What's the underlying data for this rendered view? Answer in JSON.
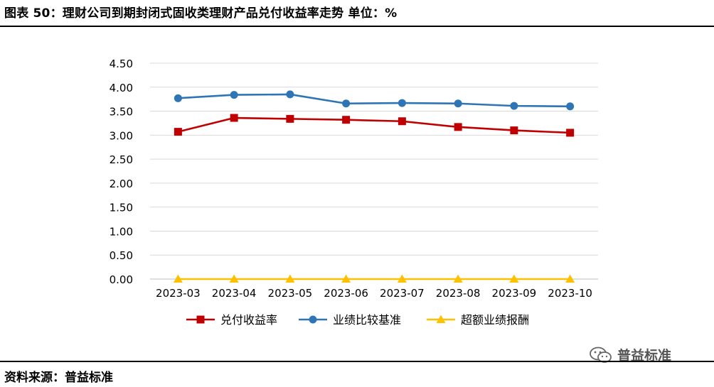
{
  "header": {
    "title": "图表 50：理财公司到期封闭式固收类理财产品兑付收益率走势 单位：%"
  },
  "footer": {
    "source": "资料来源：普益标准"
  },
  "watermark": {
    "text": "普益标准",
    "icon": "wechat-icon"
  },
  "chart_data": {
    "type": "line",
    "categories": [
      "2023-03",
      "2023-04",
      "2023-05",
      "2023-06",
      "2023-07",
      "2023-08",
      "2023-09",
      "2023-10"
    ],
    "y_ticks": [
      "0.00",
      "0.50",
      "1.00",
      "1.50",
      "2.00",
      "2.50",
      "3.00",
      "3.50",
      "4.00",
      "4.50"
    ],
    "ylim": [
      0,
      4.5
    ],
    "grid": true,
    "legend_position": "bottom",
    "series": [
      {
        "name": "兑付收益率",
        "color": "#c00000",
        "marker": "square",
        "values": [
          3.07,
          3.36,
          3.34,
          3.32,
          3.29,
          3.17,
          3.1,
          3.05
        ]
      },
      {
        "name": "业绩比较基准",
        "color": "#2e75b6",
        "marker": "circle",
        "values": [
          3.77,
          3.84,
          3.85,
          3.66,
          3.67,
          3.66,
          3.61,
          3.6
        ]
      },
      {
        "name": "超额业绩报酬",
        "color": "#ffc000",
        "marker": "triangle",
        "values": [
          0.0,
          0.0,
          0.0,
          0.0,
          0.0,
          0.0,
          0.0,
          0.0
        ]
      }
    ]
  }
}
